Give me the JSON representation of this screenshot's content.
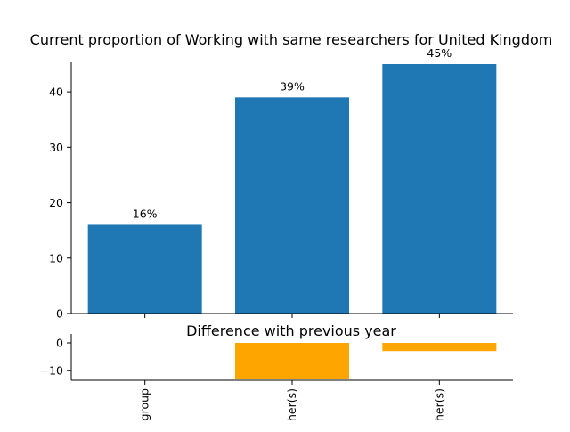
{
  "chart_data": [
    {
      "type": "bar",
      "title": "Current proportion of Working with same researchers for United Kingdom",
      "categories": [
        "group",
        "her(s)",
        "her(s)"
      ],
      "values": [
        16,
        39,
        45
      ],
      "value_labels": [
        "16%",
        "39%",
        "45%"
      ],
      "ylim": [
        0,
        45
      ],
      "yticks": [
        0,
        10,
        20,
        30,
        40
      ],
      "grid": false,
      "color": "#1f77b4"
    },
    {
      "type": "bar",
      "title": "Difference with previous year",
      "categories": [
        "group",
        "her(s)",
        "her(s)"
      ],
      "values": [
        0,
        -13,
        -3
      ],
      "ylim": [
        -13,
        0
      ],
      "yticks": [
        0,
        -10
      ],
      "ytick_labels": [
        "0",
        "−10"
      ],
      "grid": false,
      "color": "#ffa500"
    }
  ]
}
